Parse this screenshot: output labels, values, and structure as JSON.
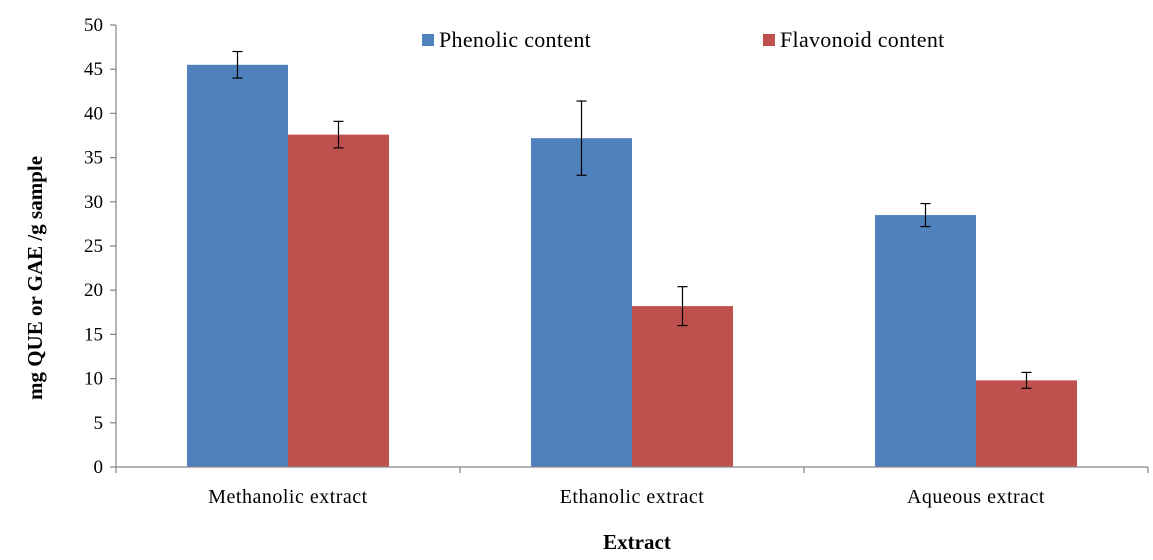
{
  "chart_data": {
    "type": "bar",
    "title": "",
    "xlabel": "Extract",
    "ylabel": "mg QUE or GAE /g sample",
    "categories": [
      "Methanolic extract",
      "Ethanolic extract",
      "Aqueous extract"
    ],
    "ylim": [
      0,
      50
    ],
    "yticks": [
      0,
      5,
      10,
      15,
      20,
      25,
      30,
      35,
      40,
      45,
      50
    ],
    "grid": false,
    "legend_position": "top",
    "series": [
      {
        "name": "Phenolic content",
        "color": "#4F81BD",
        "values": [
          45.5,
          37.2,
          28.5
        ],
        "errors": [
          1.5,
          4.2,
          1.3
        ]
      },
      {
        "name": "Flavonoid content",
        "color": "#C0504D",
        "values": [
          37.6,
          18.2,
          9.8
        ],
        "errors": [
          1.5,
          2.2,
          0.9
        ]
      }
    ]
  }
}
